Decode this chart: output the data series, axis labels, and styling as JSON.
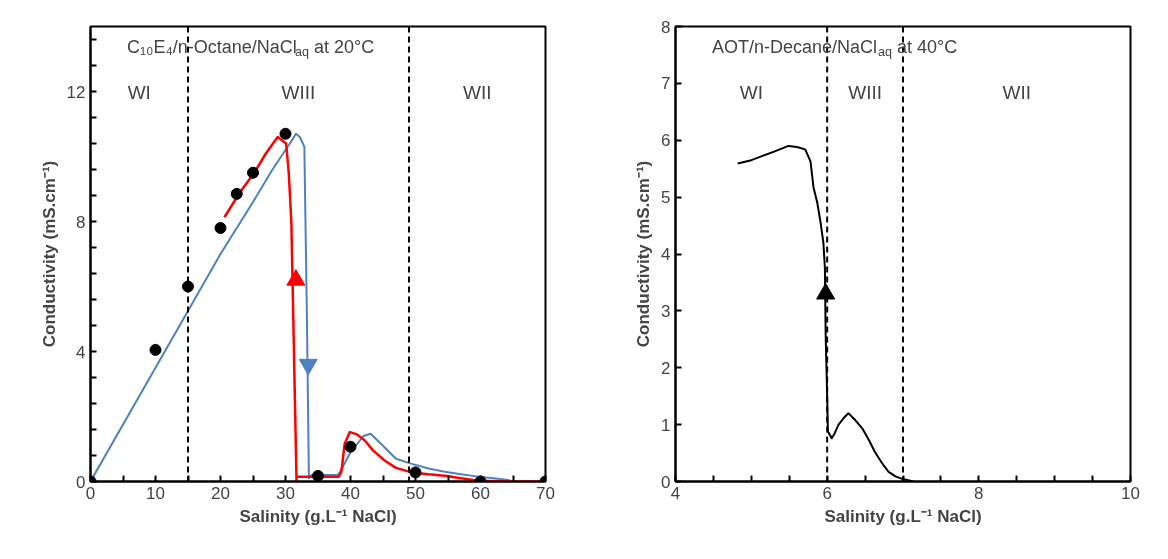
{
  "chart_data": [
    {
      "type": "line",
      "title": "C₁₀E₄/n-Octane/NaCl$_{aq}$ at 20°C",
      "xlabel": "Salinity (g.L⁻¹ NaCl)",
      "ylabel": "Conductivity (mS.cm⁻¹)",
      "xlim": [
        0,
        70
      ],
      "ylim": [
        0,
        14
      ],
      "xticks": [
        0,
        {
          "value": 5,
          "label": null
        },
        10,
        {
          "value": 15,
          "label": null
        },
        20,
        {
          "value": 25,
          "label": null
        },
        30,
        {
          "value": 35,
          "label": null
        },
        40,
        {
          "value": 45,
          "label": null
        },
        50,
        {
          "value": 55,
          "label": null
        },
        60,
        {
          "value": 65,
          "label": null
        },
        70
      ],
      "yticks": [
        0,
        {
          "value": 0.8,
          "label": null
        },
        {
          "value": 1.6,
          "label": null
        },
        {
          "value": 2.4,
          "label": null
        },
        {
          "value": 3.2,
          "label": null
        },
        4,
        {
          "value": 4.8,
          "label": null
        },
        {
          "value": 5.6,
          "label": null
        },
        {
          "value": 6.4,
          "label": null
        },
        {
          "value": 7.2,
          "label": null
        },
        8,
        {
          "value": 8.8,
          "label": null
        },
        {
          "value": 9.6,
          "label": null
        },
        {
          "value": 10.4,
          "label": null
        },
        {
          "value": 11.2,
          "label": null
        },
        12,
        {
          "value": 12.8,
          "label": null
        },
        {
          "value": 13.6,
          "label": null
        }
      ],
      "grid": false,
      "ref_lines": [
        {
          "axis": "x",
          "value": 15,
          "color": "#000000",
          "line_style": "dashed"
        },
        {
          "axis": "x",
          "value": 49,
          "color": "#000000",
          "line_style": "dashed"
        }
      ],
      "annotations": [
        "WI",
        "WIII",
        "WII"
      ],
      "series": [
        {
          "color": "#4f81bd",
          "x": [
            0,
            10,
            20,
            25,
            28,
            30,
            31,
            31.6,
            32.2,
            32.9,
            33.3,
            33.6,
            34,
            36,
            38,
            38.4,
            40,
            42,
            43.1,
            45,
            47,
            49.3,
            52,
            54.5,
            57,
            59.6,
            62,
            64.2,
            65
          ],
          "values": [
            0,
            3.5,
            7.0,
            8.6,
            9.6,
            10.2,
            10.5,
            10.7,
            10.6,
            10.3,
            5,
            0.1,
            0.2,
            0.2,
            0.2,
            0.3,
            0.9,
            1.4,
            1.47,
            1.1,
            0.7,
            0.55,
            0.4,
            0.3,
            0.22,
            0.15,
            0.1,
            0.05,
            0
          ]
        },
        {
          "color": "#ff0000",
          "x": [
            20.6,
            23,
            25.2,
            27,
            28.8,
            30.1,
            30.5,
            30.9,
            31.3,
            31.7,
            31.7,
            32,
            34,
            36,
            38.2,
            38.6,
            39.1,
            39.9,
            41,
            42.2,
            43.5,
            45.3,
            47,
            49.4,
            52,
            54.5,
            57,
            59.7,
            65,
            70
          ],
          "values": [
            8.13,
            8.9,
            9.5,
            10.1,
            10.6,
            10.4,
            9.5,
            8.0,
            4.0,
            0,
            0.15,
            0.15,
            0.15,
            0.15,
            0.15,
            0.3,
            1.16,
            1.52,
            1.45,
            1.26,
            0.95,
            0.64,
            0.42,
            0.28,
            0.22,
            0.18,
            0.1,
            0.02,
            0,
            0
          ]
        },
        {
          "type": "scatter",
          "color": "#000000",
          "marker": "circle",
          "x": [
            0,
            10,
            15,
            20,
            22.5,
            25,
            30,
            35,
            40,
            50,
            60,
            70
          ],
          "values": [
            0,
            4.05,
            6.0,
            7.8,
            8.85,
            9.5,
            10.7,
            0.17,
            1.07,
            0.28,
            0,
            0
          ]
        },
        {
          "type": "scatter",
          "color": "#ff0000",
          "marker": "triangle",
          "x": [
            31.6
          ],
          "values": [
            6.2
          ]
        },
        {
          "type": "scatter",
          "color": "#4f81bd",
          "x": [
            33.5
          ],
          "values": [
            3.6
          ]
        }
      ]
    },
    {
      "type": "line",
      "title": "AOT/n-Decane/NaCl$_{aq}$ at 40°C",
      "xlabel": "Salinity (g.L⁻¹ NaCl)",
      "ylabel": "Conductivity (mS.cm⁻¹)",
      "xlim": [
        4,
        10
      ],
      "ylim": [
        0,
        8
      ],
      "xticks": [
        4,
        {
          "value": 4.5,
          "label": null
        },
        {
          "value": 5,
          "label": null
        },
        {
          "value": 5.5,
          "label": null
        },
        6,
        {
          "value": 6.5,
          "label": null
        },
        {
          "value": 7,
          "label": null
        },
        {
          "value": 7.5,
          "label": null
        },
        8,
        {
          "value": 8.5,
          "label": null
        },
        {
          "value": 9,
          "label": null
        },
        {
          "value": 9.5,
          "label": null
        },
        10
      ],
      "yticks": [
        0,
        1,
        2,
        3,
        4,
        5,
        6,
        7,
        8
      ],
      "grid": false,
      "ref_lines": [
        {
          "axis": "x",
          "value": 6,
          "color": "#000000",
          "line_style": "dashed"
        },
        {
          "axis": "x",
          "value": 7,
          "color": "#000000",
          "line_style": "dashed"
        }
      ],
      "annotations": [
        "WI",
        "WIII",
        "WII"
      ],
      "series": [
        {
          "color": "#000000",
          "x": [
            4.82,
            5.0,
            5.14,
            5.3,
            5.49,
            5.6,
            5.71,
            5.78,
            5.82,
            5.87,
            5.91,
            5.95,
            5.97,
            5.98,
            6.0,
            6.01,
            6.06,
            6.1,
            6.15,
            6.22,
            6.28,
            6.37,
            6.46,
            6.55,
            6.63,
            6.72,
            6.81,
            6.9,
            6.98,
            7.14
          ],
          "values": [
            5.59,
            5.65,
            5.72,
            5.8,
            5.9,
            5.88,
            5.84,
            5.63,
            5.17,
            4.9,
            4.58,
            4.2,
            3.76,
            2.58,
            1.5,
            0.88,
            0.76,
            0.85,
            1.0,
            1.12,
            1.2,
            1.08,
            0.94,
            0.73,
            0.52,
            0.33,
            0.17,
            0.09,
            0.05,
            0.0
          ]
        },
        {
          "type": "scatter",
          "color": "#000000",
          "marker": "triangle",
          "x": [
            5.98
          ],
          "values": [
            3.3
          ]
        }
      ]
    }
  ]
}
